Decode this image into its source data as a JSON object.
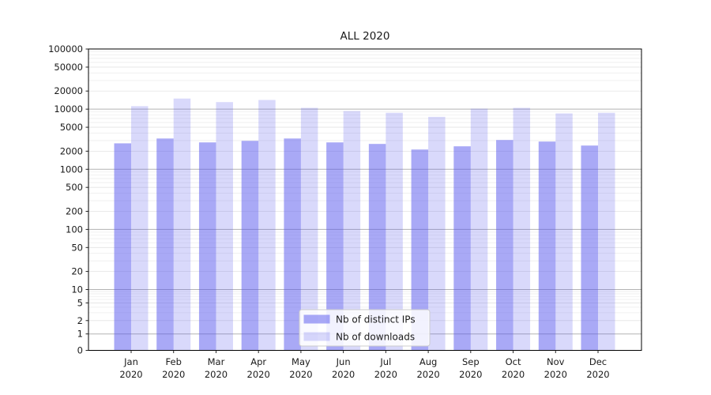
{
  "page": {
    "background": "#ffffff"
  },
  "chart_data": {
    "type": "bar",
    "title": "ALL 2020",
    "categories": [
      "Jan",
      "Feb",
      "Mar",
      "Apr",
      "May",
      "Jun",
      "Jul",
      "Aug",
      "Sep",
      "Oct",
      "Nov",
      "Dec"
    ],
    "x_tick_second_line": "2020",
    "series": [
      {
        "name": "Nb of distinct IPs",
        "color": "rgba(84,84,238,0.50)",
        "values": [
          2700,
          3250,
          2800,
          2970,
          3250,
          2800,
          2640,
          2130,
          2410,
          3070,
          2890,
          2480
        ]
      },
      {
        "name": "Nb of downloads",
        "color": "rgba(84,84,238,0.22)",
        "values": [
          11200,
          15000,
          13100,
          14200,
          10500,
          9300,
          8700,
          7450,
          10200,
          10500,
          8500,
          8700
        ]
      }
    ],
    "y_axis": {
      "scale": "log-with-zero-floor",
      "range": [
        0,
        100000
      ],
      "ticks": [
        0,
        1,
        2,
        5,
        10,
        20,
        50,
        100,
        200,
        500,
        1000,
        2000,
        5000,
        10000,
        20000,
        50000,
        100000
      ]
    },
    "x_axis": {
      "tick_count": 12
    },
    "legend": {
      "position": "lower-center",
      "entries": [
        "Nb of distinct IPs",
        "Nb of downloads"
      ]
    },
    "grid": {
      "horizontal": true,
      "major_color": "#b3b3b3",
      "sub_color": "#e3e3e3",
      "minor_color": "#eeeeee"
    },
    "frame_color": "#000000"
  }
}
